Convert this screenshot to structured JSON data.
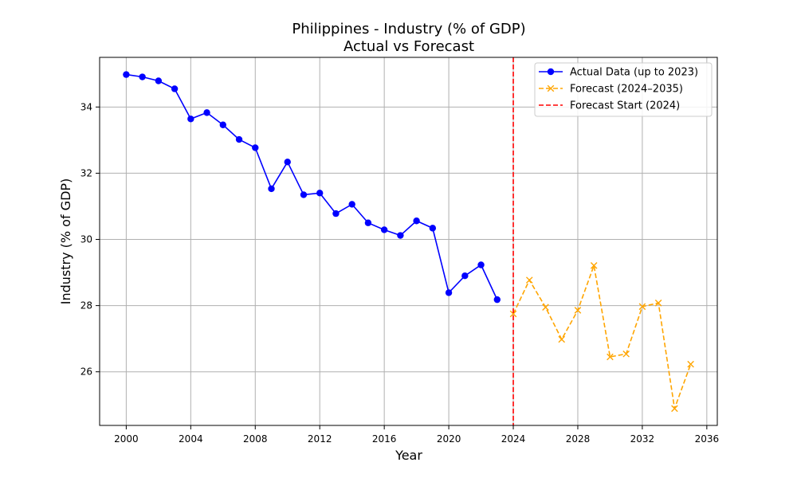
{
  "chart_data": {
    "type": "line",
    "title_line1": "Philippines - Industry (% of GDP)",
    "title_line2": "Actual vs Forecast",
    "xlabel": "Year",
    "ylabel": "Industry (% of GDP)",
    "xlim": [
      1998.35,
      2036.65
    ],
    "ylim": [
      24.38,
      35.5
    ],
    "x_ticks": [
      2000,
      2004,
      2008,
      2012,
      2016,
      2020,
      2024,
      2028,
      2032,
      2036
    ],
    "y_ticks": [
      26,
      28,
      30,
      32,
      34
    ],
    "grid": true,
    "legend_position": "top-right",
    "series": [
      {
        "name": "Actual Data (up to 2023)",
        "color": "#0000ff",
        "line_style": "solid",
        "marker": "circle",
        "x": [
          2000,
          2001,
          2002,
          2003,
          2004,
          2005,
          2006,
          2007,
          2008,
          2009,
          2010,
          2011,
          2012,
          2013,
          2014,
          2015,
          2016,
          2017,
          2018,
          2019,
          2020,
          2021,
          2022,
          2023
        ],
        "y": [
          34.98,
          34.91,
          34.79,
          34.55,
          33.64,
          33.83,
          33.46,
          33.02,
          32.77,
          31.53,
          32.34,
          31.35,
          31.4,
          30.78,
          31.06,
          30.5,
          30.29,
          30.12,
          30.56,
          30.34,
          28.39,
          28.9,
          29.23,
          28.18
        ]
      },
      {
        "name": "Forecast (2024–2035)",
        "color": "#ffa500",
        "line_style": "dashed",
        "marker": "x",
        "x": [
          2024,
          2025,
          2026,
          2027,
          2028,
          2029,
          2030,
          2031,
          2032,
          2033,
          2034,
          2035
        ],
        "y": [
          27.75,
          28.77,
          27.95,
          26.98,
          27.86,
          29.21,
          26.45,
          26.54,
          27.97,
          28.08,
          24.89,
          26.23
        ]
      }
    ],
    "vline": {
      "name": "Forecast Start (2024)",
      "x": 2024,
      "color": "#ff0000",
      "line_style": "dashed"
    }
  }
}
